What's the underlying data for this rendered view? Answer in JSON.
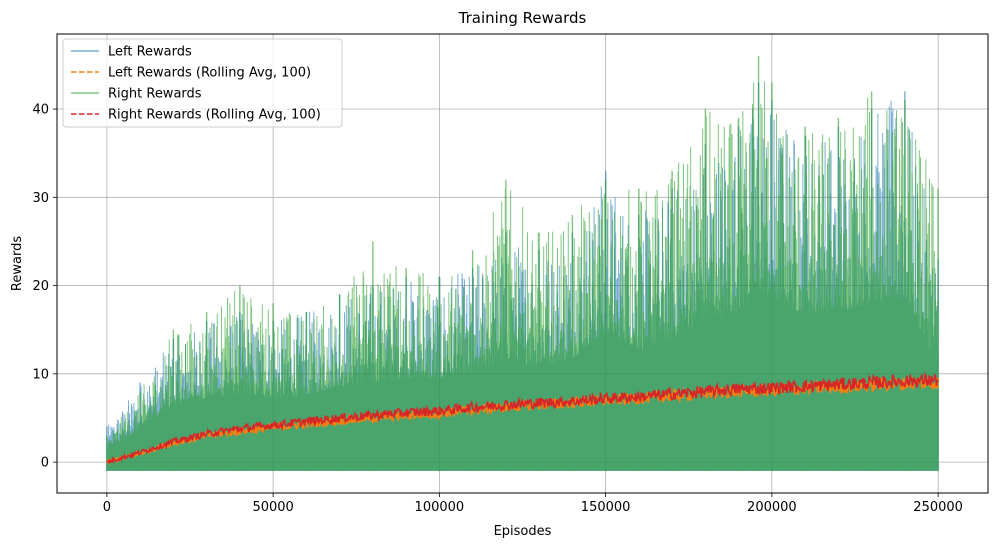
{
  "chart_data": {
    "type": "line",
    "title": "Training Rewards",
    "xlabel": "Episodes",
    "ylabel": "Rewards",
    "xlim": [
      -15000,
      265000
    ],
    "ylim": [
      -3.5,
      48.5
    ],
    "xticks": [
      0,
      50000,
      100000,
      150000,
      200000,
      250000
    ],
    "yticks": [
      0,
      10,
      20,
      30,
      40
    ],
    "grid": true,
    "legend_position": "top-left",
    "series": [
      {
        "name": "Left Rewards",
        "style": "solid",
        "color": "#1f77b4",
        "opacity": 0.6,
        "note_min": -1,
        "x": [
          0,
          10000,
          20000,
          30000,
          40000,
          50000,
          60000,
          70000,
          80000,
          90000,
          100000,
          110000,
          120000,
          130000,
          140000,
          150000,
          160000,
          170000,
          180000,
          190000,
          196000,
          200000,
          210000,
          220000,
          230000,
          240000,
          250000
        ],
        "max": [
          4,
          9,
          14,
          16,
          17,
          16,
          17,
          19,
          20,
          21,
          21,
          22,
          26,
          24,
          26,
          33,
          28,
          31,
          36,
          38,
          43,
          41,
          37,
          38,
          40,
          42,
          23
        ]
      },
      {
        "name": "Left Rewards (Rolling Avg, 100)",
        "style": "dashed",
        "color": "#ff7f0e",
        "x": [
          0,
          10000,
          20000,
          30000,
          40000,
          50000,
          60000,
          70000,
          80000,
          90000,
          100000,
          110000,
          120000,
          130000,
          140000,
          150000,
          160000,
          170000,
          180000,
          190000,
          200000,
          210000,
          220000,
          230000,
          240000,
          250000
        ],
        "values": [
          0,
          1.0,
          2.2,
          3.0,
          3.5,
          3.9,
          4.3,
          4.7,
          5.0,
          5.3,
          5.5,
          5.9,
          6.2,
          6.5,
          6.7,
          7.0,
          7.2,
          7.5,
          7.8,
          8.0,
          8.1,
          8.3,
          8.5,
          8.7,
          8.9,
          9.0
        ]
      },
      {
        "name": "Right Rewards",
        "style": "solid",
        "color": "#2ca02c",
        "opacity": 0.6,
        "note_min": -1,
        "x": [
          0,
          10000,
          20000,
          30000,
          40000,
          50000,
          60000,
          70000,
          80000,
          90000,
          100000,
          110000,
          120000,
          130000,
          140000,
          150000,
          160000,
          170000,
          180000,
          190000,
          196000,
          200000,
          210000,
          220000,
          230000,
          240000,
          250000
        ],
        "max": [
          3,
          8,
          15,
          17,
          20,
          18,
          17,
          19,
          25,
          22,
          21,
          24,
          32,
          26,
          28,
          32,
          31,
          33,
          40,
          39,
          46,
          43,
          38,
          39,
          42,
          41,
          31
        ]
      },
      {
        "name": "Right Rewards (Rolling Avg, 100)",
        "style": "dashed",
        "color": "#d62728",
        "x": [
          0,
          10000,
          20000,
          30000,
          40000,
          50000,
          60000,
          70000,
          80000,
          90000,
          100000,
          110000,
          120000,
          130000,
          140000,
          150000,
          160000,
          170000,
          180000,
          190000,
          200000,
          210000,
          220000,
          230000,
          240000,
          250000
        ],
        "values": [
          0,
          1.1,
          2.3,
          3.2,
          3.8,
          4.2,
          4.6,
          5.0,
          5.3,
          5.6,
          5.8,
          6.2,
          6.5,
          6.7,
          6.9,
          7.2,
          7.4,
          7.7,
          8.0,
          8.3,
          8.4,
          8.6,
          8.8,
          9.0,
          9.2,
          9.3
        ]
      }
    ]
  }
}
